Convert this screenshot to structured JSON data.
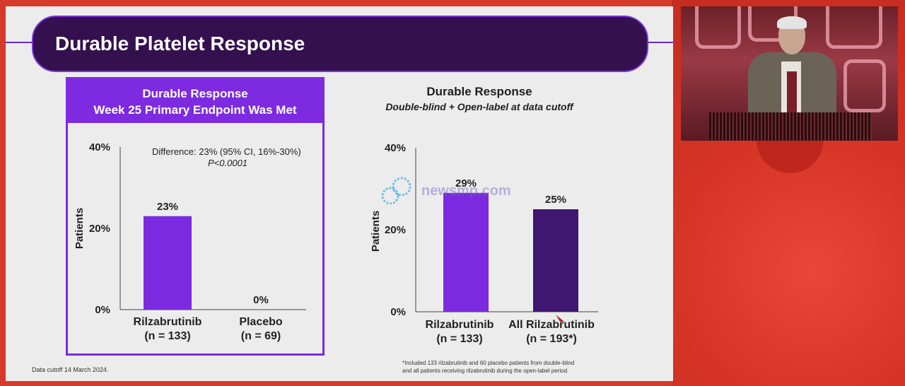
{
  "slide": {
    "title": "Durable Platelet Response",
    "data_cutoff": "Data cutoff 14 March 2024.",
    "footnote_lines": [
      "*Included 133 rilzabrutinib and 60 placebo patients from double-blind",
      "and all patients receiving rilzabrutinib during the open-label period."
    ],
    "watermark": "newsmp.com"
  },
  "colors": {
    "bar_light_purple": "#7b2ae0",
    "bar_dark_purple": "#3f1670",
    "title_bar": "#34104f",
    "frame_red": "#d63a2b"
  },
  "chart_data": [
    {
      "type": "bar",
      "header_lines": [
        "Durable Response",
        "Week 25 Primary Endpoint Was Met"
      ],
      "ylabel": "Patients",
      "yticks": [
        "40%",
        "20%",
        "0%"
      ],
      "ylim": [
        0,
        40
      ],
      "annotation_lines": [
        "Difference: 23% (95% CI, 16%-30%)",
        "P<0.0001"
      ],
      "categories": [
        {
          "name": "Rilzabrutinib",
          "n": "(n = 133)"
        },
        {
          "name": "Placebo",
          "n": "(n = 69)"
        }
      ],
      "values": [
        23,
        0
      ],
      "value_labels": [
        "23%",
        "0%"
      ]
    },
    {
      "type": "bar",
      "title": "Durable Response",
      "subtitle": "Double-blind + Open-label at data cutoff",
      "ylabel": "Patients",
      "yticks": [
        "40%",
        "20%",
        "0%"
      ],
      "ylim": [
        0,
        40
      ],
      "categories": [
        {
          "name": "Rilzabrutinib",
          "n": "(n = 133)"
        },
        {
          "name": "All Rilzabrutinib",
          "n": "(n = 193*)"
        }
      ],
      "values": [
        29,
        25
      ],
      "value_labels": [
        "29%",
        "25%"
      ]
    }
  ]
}
